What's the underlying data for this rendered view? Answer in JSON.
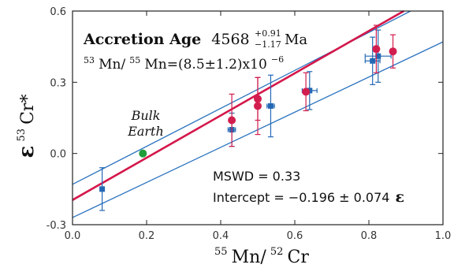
{
  "chart_data": {
    "type": "scatter",
    "xlabel": {
      "iso1": "55",
      "el1": "Mn/",
      "iso2": "52",
      "el2": "Cr"
    },
    "ylabel": {
      "eps": "ε",
      "iso": "53",
      "el": "Cr*"
    },
    "xlim": [
      0.0,
      1.0
    ],
    "ylim": [
      -0.3,
      0.6
    ],
    "x_ticks": [
      "0.0",
      "0.2",
      "0.4",
      "0.6",
      "0.8",
      "1.0"
    ],
    "y_ticks": [
      "-0.3",
      "0.0",
      "0.3",
      "0.6"
    ],
    "annotations": {
      "accretion_label": "Accretion Age",
      "accretion_value": "4568",
      "accretion_plus": "+0.91",
      "accretion_minus": "−1.17",
      "accretion_unit": "Ma",
      "ratio_iso1": "53",
      "ratio_el1": "Mn/",
      "ratio_iso2": "55",
      "ratio_rest": "Mn=(8.5±1.2)x10",
      "ratio_exp": "−6",
      "bulk_earth_line1": "Bulk",
      "bulk_earth_line2": "Earth",
      "mswd": "MSWD = 0.33",
      "intercept_text": "Intercept = −0.196 ± 0.074",
      "intercept_eps": "ε"
    },
    "fit_line": {
      "slope": 0.89,
      "intercept": -0.196
    },
    "confidence_lines": [
      {
        "x": [
          0.0,
          1.0
        ],
        "y": [
          -0.13,
          0.67
        ]
      },
      {
        "x": [
          0.0,
          1.0
        ],
        "y": [
          -0.27,
          0.47
        ]
      }
    ],
    "series": [
      {
        "color": "#2468b4",
        "points": [
          {
            "x": 0.08,
            "y": -0.15,
            "yerr": 0.09,
            "xerr": 0.005
          },
          {
            "x": 0.43,
            "y": 0.1,
            "yerr": 0.07,
            "xerr": 0.01
          },
          {
            "x": 0.535,
            "y": 0.2,
            "yerr": 0.13,
            "xerr": 0.01
          },
          {
            "x": 0.64,
            "y": 0.265,
            "yerr": 0.08,
            "xerr": 0.02
          },
          {
            "x": 0.81,
            "y": 0.39,
            "yerr": 0.1,
            "xerr": 0.02
          },
          {
            "x": 0.825,
            "y": 0.41,
            "yerr": 0.11,
            "xerr": 0.035
          }
        ]
      },
      {
        "color": "#d21e4e",
        "points": [
          {
            "x": 0.43,
            "y": 0.14,
            "yerr": 0.11
          },
          {
            "x": 0.5,
            "y": 0.2,
            "yerr": 0.12
          },
          {
            "x": 0.5,
            "y": 0.23,
            "yerr": 0.09
          },
          {
            "x": 0.63,
            "y": 0.26,
            "yerr": 0.08
          },
          {
            "x": 0.82,
            "y": 0.44,
            "yerr": 0.1
          },
          {
            "x": 0.865,
            "y": 0.43,
            "yerr": 0.07
          }
        ]
      },
      {
        "color": "#1f9d3a",
        "points": [
          {
            "x": 0.19,
            "y": 0.0
          }
        ]
      }
    ]
  }
}
